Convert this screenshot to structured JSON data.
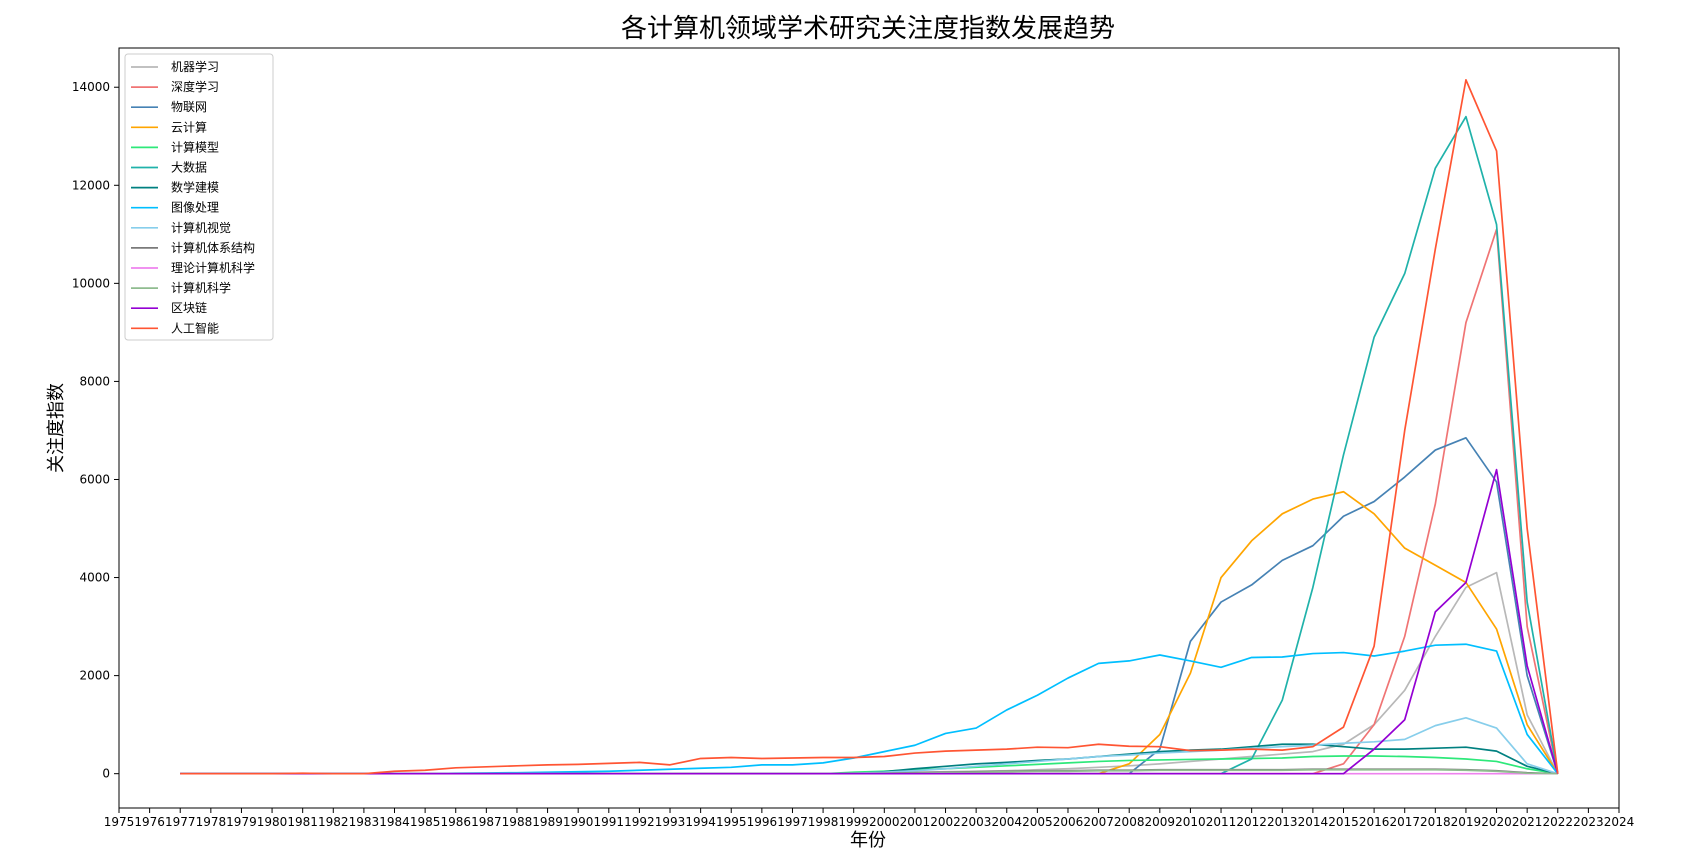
{
  "chart_data": {
    "type": "line",
    "title": "各计算机领域学术研究关注度指数发展趋势",
    "xlabel": "年份",
    "ylabel": "关注度指数",
    "xlim": [
      1975,
      2024
    ],
    "ylim": [
      -700,
      14800
    ],
    "x_ticks": [
      1975,
      1976,
      1977,
      1978,
      1979,
      1980,
      1981,
      1982,
      1983,
      1984,
      1985,
      1986,
      1987,
      1988,
      1989,
      1990,
      1991,
      1992,
      1993,
      1994,
      1995,
      1996,
      1997,
      1998,
      1999,
      2000,
      2001,
      2002,
      2003,
      2004,
      2005,
      2006,
      2007,
      2008,
      2009,
      2010,
      2011,
      2012,
      2013,
      2014,
      2015,
      2016,
      2017,
      2018,
      2019,
      2020,
      2021,
      2022,
      2023,
      2024
    ],
    "y_ticks": [
      0,
      2000,
      4000,
      6000,
      8000,
      10000,
      12000,
      14000
    ],
    "legend_position": "upper-left",
    "grid": false,
    "x": [
      1977,
      1978,
      1979,
      1980,
      1981,
      1982,
      1983,
      1984,
      1985,
      1986,
      1987,
      1988,
      1989,
      1990,
      1991,
      1992,
      1993,
      1994,
      1995,
      1996,
      1997,
      1998,
      1999,
      2000,
      2001,
      2002,
      2003,
      2004,
      2005,
      2006,
      2007,
      2008,
      2009,
      2010,
      2011,
      2012,
      2013,
      2014,
      2015,
      2016,
      2017,
      2018,
      2019,
      2020,
      2021,
      2022
    ],
    "series": [
      {
        "name": "机器学习",
        "color": "#b8b8b8",
        "values": [
          0,
          0,
          0,
          0,
          0,
          0,
          0,
          0,
          0,
          0,
          0,
          0,
          0,
          0,
          0,
          0,
          0,
          0,
          0,
          0,
          0,
          0,
          10,
          20,
          30,
          40,
          50,
          60,
          80,
          100,
          130,
          160,
          200,
          250,
          300,
          350,
          400,
          450,
          600,
          1000,
          1700,
          2800,
          3800,
          4100,
          1200,
          0
        ]
      },
      {
        "name": "深度学习",
        "color": "#f07474",
        "values": [
          0,
          0,
          0,
          0,
          0,
          0,
          0,
          0,
          0,
          0,
          0,
          0,
          0,
          0,
          0,
          0,
          0,
          0,
          0,
          0,
          0,
          0,
          0,
          0,
          0,
          0,
          0,
          0,
          0,
          0,
          0,
          0,
          0,
          0,
          0,
          0,
          0,
          0,
          200,
          1000,
          2800,
          5500,
          9200,
          11100,
          3000,
          0
        ]
      },
      {
        "name": "物联网",
        "color": "#4682b4",
        "values": [
          0,
          0,
          0,
          0,
          0,
          0,
          0,
          0,
          0,
          0,
          0,
          0,
          0,
          0,
          0,
          0,
          0,
          0,
          0,
          0,
          0,
          0,
          0,
          0,
          0,
          0,
          0,
          0,
          0,
          0,
          0,
          0,
          500,
          2700,
          3500,
          3850,
          4350,
          4650,
          5250,
          5550,
          6050,
          6600,
          6850,
          5950,
          2000,
          0
        ]
      },
      {
        "name": "云计算",
        "color": "#ffa500",
        "values": [
          0,
          0,
          0,
          0,
          0,
          0,
          0,
          0,
          0,
          0,
          0,
          0,
          0,
          0,
          0,
          0,
          0,
          0,
          0,
          0,
          0,
          0,
          0,
          0,
          0,
          0,
          0,
          0,
          0,
          0,
          0,
          200,
          800,
          2050,
          4000,
          4750,
          5300,
          5600,
          5750,
          5300,
          4600,
          4250,
          3900,
          2950,
          1000,
          0
        ]
      },
      {
        "name": "计算模型",
        "color": "#2ee87a",
        "values": [
          0,
          0,
          0,
          0,
          0,
          0,
          0,
          0,
          0,
          0,
          0,
          0,
          0,
          0,
          0,
          0,
          0,
          0,
          0,
          0,
          0,
          0,
          30,
          50,
          80,
          100,
          130,
          160,
          190,
          220,
          250,
          270,
          280,
          290,
          300,
          310,
          320,
          350,
          360,
          360,
          350,
          330,
          300,
          250,
          100,
          0
        ]
      },
      {
        "name": "大数据",
        "color": "#20b2aa",
        "values": [
          0,
          0,
          0,
          0,
          0,
          0,
          0,
          0,
          0,
          0,
          0,
          0,
          0,
          0,
          0,
          0,
          0,
          0,
          0,
          0,
          0,
          0,
          0,
          0,
          0,
          0,
          0,
          0,
          0,
          0,
          0,
          0,
          0,
          0,
          0,
          300,
          1500,
          3800,
          6500,
          8900,
          10200,
          12350,
          13400,
          11200,
          3500,
          0
        ]
      },
      {
        "name": "数学建模",
        "color": "#008080",
        "values": [
          0,
          0,
          0,
          0,
          0,
          0,
          0,
          0,
          0,
          0,
          0,
          0,
          0,
          0,
          0,
          0,
          0,
          0,
          0,
          0,
          0,
          0,
          0,
          40,
          100,
          150,
          200,
          230,
          270,
          300,
          350,
          400,
          450,
          480,
          500,
          550,
          600,
          600,
          550,
          500,
          500,
          520,
          540,
          460,
          150,
          0
        ]
      },
      {
        "name": "图像处理",
        "color": "#00bfff",
        "values": [
          0,
          0,
          0,
          0,
          0,
          0,
          0,
          0,
          0,
          10,
          15,
          20,
          30,
          40,
          50,
          70,
          90,
          110,
          130,
          180,
          180,
          220,
          320,
          450,
          580,
          820,
          930,
          1300,
          1600,
          1950,
          2250,
          2300,
          2420,
          2300,
          2170,
          2370,
          2380,
          2450,
          2470,
          2400,
          2500,
          2620,
          2640,
          2500,
          800,
          0
        ]
      },
      {
        "name": "计算机视觉",
        "color": "#87ceeb",
        "values": [
          0,
          0,
          0,
          0,
          0,
          0,
          0,
          0,
          0,
          0,
          0,
          0,
          0,
          0,
          0,
          0,
          0,
          0,
          0,
          0,
          0,
          0,
          10,
          30,
          60,
          100,
          150,
          200,
          250,
          300,
          350,
          380,
          420,
          450,
          480,
          520,
          550,
          580,
          620,
          650,
          700,
          980,
          1140,
          930,
          200,
          0
        ]
      },
      {
        "name": "计算机体系结构",
        "color": "#7a7a7a",
        "values": [
          0,
          0,
          0,
          0,
          0,
          0,
          0,
          0,
          0,
          0,
          0,
          0,
          0,
          0,
          0,
          0,
          0,
          0,
          0,
          0,
          0,
          0,
          5,
          10,
          20,
          30,
          40,
          50,
          60,
          60,
          70,
          70,
          80,
          80,
          80,
          80,
          80,
          90,
          90,
          90,
          90,
          90,
          80,
          60,
          20,
          0
        ]
      },
      {
        "name": "理论计算机科学",
        "color": "#ee82ee",
        "values": [
          0,
          0,
          0,
          0,
          0,
          0,
          0,
          0,
          0,
          0,
          0,
          0,
          0,
          0,
          0,
          0,
          0,
          0,
          0,
          0,
          0,
          0,
          0,
          0,
          0,
          0,
          0,
          0,
          0,
          0,
          0,
          0,
          0,
          0,
          0,
          0,
          0,
          0,
          0,
          0,
          0,
          0,
          0,
          0,
          0,
          0
        ]
      },
      {
        "name": "计算机科学",
        "color": "#8fbc8f",
        "values": [
          0,
          0,
          0,
          0,
          0,
          0,
          0,
          0,
          0,
          0,
          0,
          0,
          0,
          0,
          0,
          0,
          0,
          0,
          0,
          0,
          0,
          0,
          0,
          5,
          10,
          20,
          30,
          40,
          50,
          50,
          60,
          60,
          70,
          70,
          70,
          70,
          70,
          80,
          80,
          80,
          80,
          80,
          70,
          50,
          10,
          0
        ]
      },
      {
        "name": "区块链",
        "color": "#9400d3",
        "values": [
          0,
          0,
          0,
          0,
          0,
          0,
          0,
          0,
          0,
          0,
          0,
          0,
          0,
          0,
          0,
          0,
          0,
          0,
          0,
          0,
          0,
          0,
          0,
          0,
          0,
          0,
          0,
          0,
          0,
          0,
          0,
          0,
          0,
          0,
          0,
          0,
          0,
          0,
          0,
          500,
          1100,
          3300,
          3900,
          6200,
          2200,
          0
        ]
      },
      {
        "name": "人工智能",
        "color": "#ff5533",
        "values": [
          0,
          0,
          0,
          0,
          10,
          0,
          0,
          50,
          70,
          120,
          140,
          160,
          180,
          190,
          210,
          230,
          180,
          310,
          330,
          310,
          320,
          330,
          330,
          350,
          420,
          460,
          480,
          500,
          540,
          530,
          600,
          560,
          550,
          470,
          480,
          500,
          480,
          550,
          950,
          2600,
          7000,
          10700,
          14150,
          12700,
          5000,
          0
        ]
      }
    ]
  }
}
